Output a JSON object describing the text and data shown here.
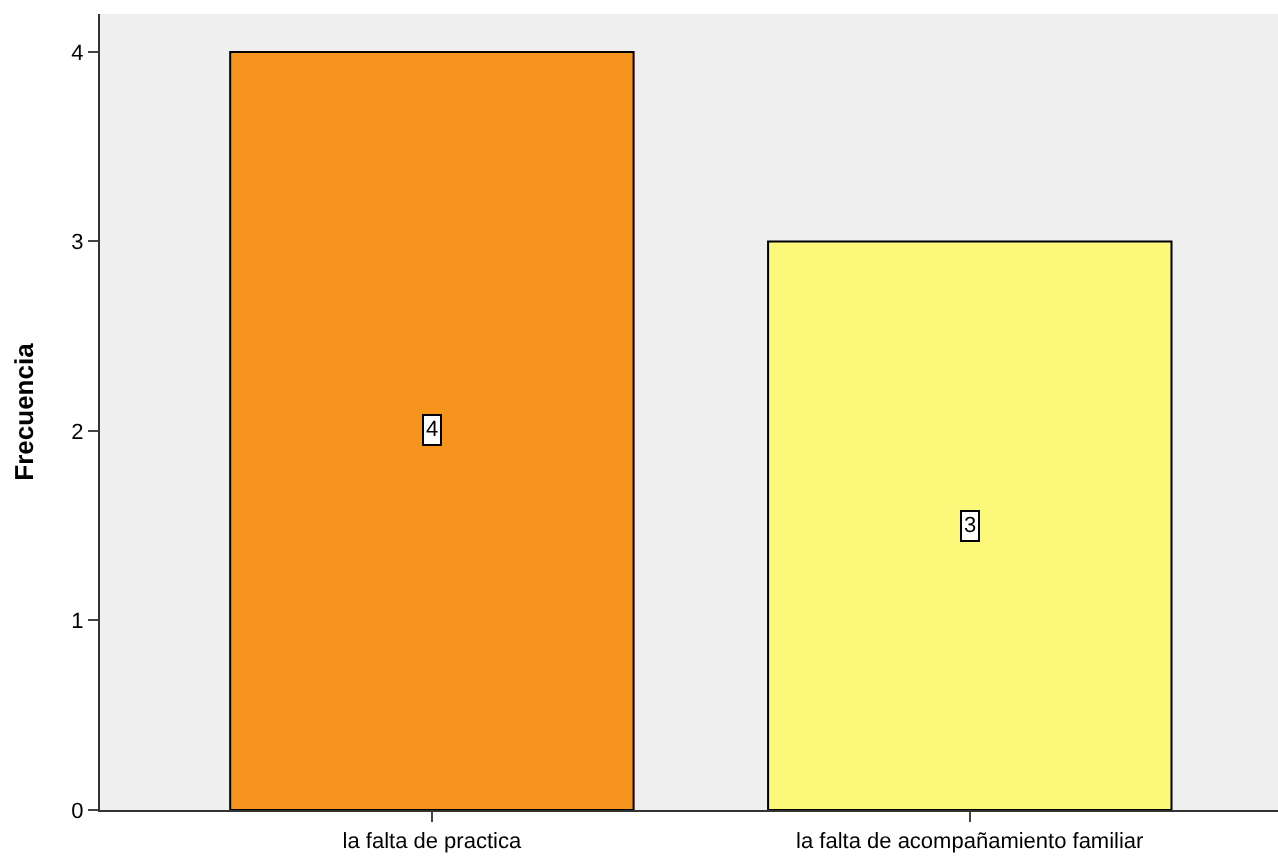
{
  "chart_data": {
    "type": "bar",
    "ylabel": "Frecuencia",
    "categories": [
      "la falta de practica",
      "la falta de acompañamiento familiar"
    ],
    "values": [
      4,
      3
    ],
    "colors": [
      "#f7941d",
      "#fbf87a"
    ],
    "ylim": [
      0,
      4.2
    ],
    "yticks": [
      0,
      1,
      2,
      3,
      4
    ],
    "grid": false,
    "legend": false,
    "data_labels": true
  }
}
